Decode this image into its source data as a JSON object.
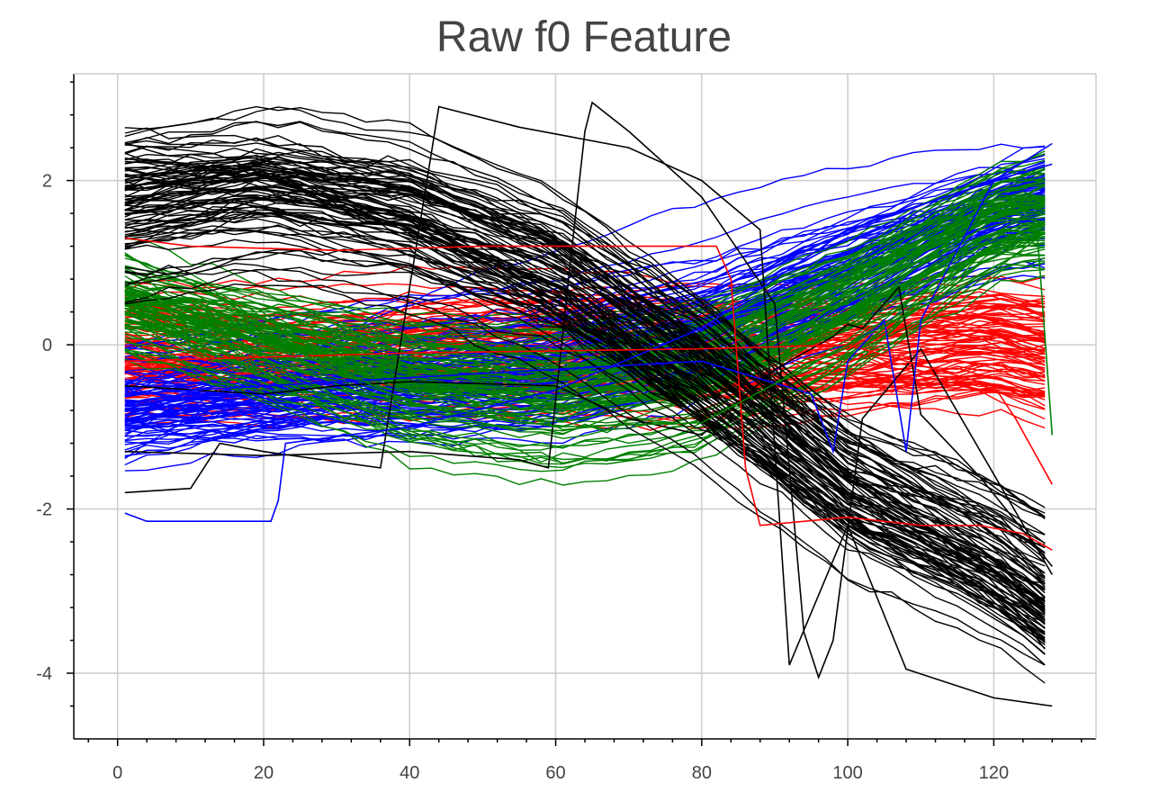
{
  "chart_data": {
    "type": "line",
    "title": "Raw f0 Feature",
    "xlabel": "",
    "ylabel": "",
    "xlim": [
      -6,
      134
    ],
    "ylim": [
      -4.8,
      3.3
    ],
    "grid": true,
    "x_ticks": [
      0,
      20,
      40,
      60,
      80,
      100,
      120
    ],
    "y_ticks": [
      2,
      0,
      -2,
      -4
    ],
    "x_tick_labels": [
      "0",
      "20",
      "40",
      "60",
      "80",
      "100",
      "120"
    ],
    "y_tick_labels": [
      "2",
      "0",
      "-2",
      "-4"
    ],
    "colors": {
      "red": "#ff0000",
      "blue": "#0000ff",
      "green": "#008000",
      "black": "#000000",
      "grid": "#cccccc",
      "axis": "#000000"
    },
    "series_groups": [
      {
        "color": "#ff0000",
        "count": 90,
        "mean_curve": {
          "x": [
            1,
            20,
            40,
            60,
            80,
            100,
            120,
            128
          ],
          "y": [
            -0.1,
            -0.15,
            -0.05,
            0.0,
            -0.05,
            -0.05,
            0.05,
            -0.1
          ]
        },
        "spread": 0.25
      },
      {
        "color": "#0000ff",
        "count": 90,
        "mean_curve": {
          "x": [
            1,
            20,
            40,
            60,
            80,
            100,
            120,
            128
          ],
          "y": [
            -0.8,
            -0.65,
            -0.5,
            -0.35,
            0.15,
            0.9,
            1.6,
            1.8
          ]
        },
        "spread": 0.2
      },
      {
        "color": "#008000",
        "count": 90,
        "mean_curve": {
          "x": [
            1,
            20,
            40,
            60,
            80,
            100,
            120,
            128
          ],
          "y": [
            0.5,
            0.05,
            -0.4,
            -0.55,
            -0.3,
            0.5,
            1.5,
            1.6
          ]
        },
        "spread": 0.2
      },
      {
        "color": "#000000",
        "count": 90,
        "mean_curve": {
          "x": [
            1,
            20,
            40,
            60,
            80,
            100,
            120,
            128
          ],
          "y": [
            1.7,
            1.9,
            1.6,
            0.9,
            -0.3,
            -1.7,
            -2.6,
            -3.1
          ]
        },
        "spread": 0.3
      }
    ],
    "outlier_series": [
      {
        "color": "#000000",
        "x": [
          1,
          10,
          14,
          20,
          36,
          44,
          55,
          70,
          80,
          88,
          92,
          100,
          108,
          120,
          128
        ],
        "y": [
          -1.8,
          -1.75,
          -1.2,
          -1.3,
          -1.5,
          2.9,
          2.65,
          2.4,
          2.0,
          1.4,
          -3.9,
          -2.2,
          -3.95,
          -4.3,
          -4.4
        ]
      },
      {
        "color": "#000000",
        "x": [
          1,
          20,
          40,
          55,
          59,
          62,
          64,
          65,
          70,
          80,
          90,
          94,
          96,
          98,
          102,
          110,
          128
        ],
        "y": [
          -1.3,
          -1.35,
          -1.3,
          -1.4,
          -1.5,
          1.0,
          2.6,
          2.95,
          2.6,
          1.8,
          0.5,
          -3.5,
          -4.05,
          -3.6,
          -0.9,
          -0.05,
          -2.8
        ]
      },
      {
        "color": "#000000",
        "x": [
          1,
          20,
          30,
          40,
          60,
          70,
          80,
          90,
          98,
          100,
          102,
          107,
          110,
          118,
          128
        ],
        "y": [
          -0.5,
          -0.6,
          -0.5,
          -0.45,
          -0.5,
          -0.9,
          -1.1,
          -0.3,
          0.1,
          0.25,
          0.2,
          0.7,
          -0.85,
          -1.6,
          -2.7
        ]
      },
      {
        "color": "#0000ff",
        "x": [
          1,
          4,
          10,
          21,
          22,
          23,
          40,
          60,
          80,
          100,
          120,
          128
        ],
        "y": [
          -2.05,
          -2.15,
          -2.15,
          -2.15,
          -1.9,
          -1.2,
          -1.0,
          -0.55,
          0.2,
          1.4,
          2.0,
          2.45
        ]
      },
      {
        "color": "#ff0000",
        "x": [
          1,
          10,
          30,
          50,
          70,
          82,
          84,
          86,
          88,
          100,
          110,
          118,
          124,
          128
        ],
        "y": [
          1.3,
          1.2,
          1.15,
          1.2,
          1.2,
          1.2,
          0.8,
          -1.5,
          -2.2,
          -2.1,
          -2.2,
          -2.2,
          -2.3,
          -2.5
        ]
      },
      {
        "color": "#ff0000",
        "x": [
          1,
          40,
          80,
          100,
          120,
          123,
          128
        ],
        "y": [
          -0.2,
          -0.1,
          -0.05,
          0.0,
          -0.5,
          -0.9,
          -1.7
        ]
      },
      {
        "color": "#0000ff",
        "x": [
          1,
          40,
          80,
          95,
          98,
          100,
          105,
          108,
          110,
          120,
          128
        ],
        "y": [
          -0.6,
          -0.4,
          -0.2,
          -0.6,
          -1.3,
          -0.2,
          0.3,
          -1.3,
          0.3,
          2.0,
          2.2
        ]
      },
      {
        "color": "#008000",
        "x": [
          1,
          20,
          40,
          60,
          80,
          100,
          120,
          126,
          128
        ],
        "y": [
          0.7,
          0.1,
          -0.7,
          -1.0,
          -0.95,
          0.0,
          0.9,
          1.3,
          -1.1
        ]
      }
    ]
  }
}
